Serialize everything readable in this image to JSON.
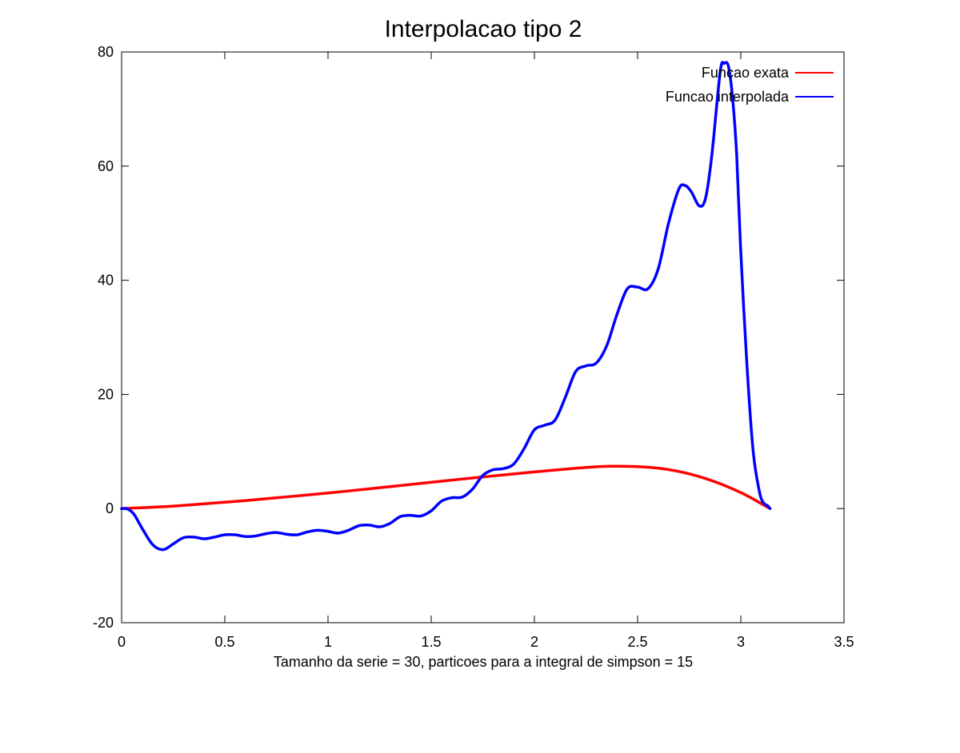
{
  "chart_data": {
    "type": "line",
    "title": "Interpolacao tipo 2",
    "xlabel": "Tamanho da serie = 30, particoes para a integral de simpson = 15",
    "ylabel": "",
    "xlim": [
      0,
      3.5
    ],
    "ylim": [
      -20,
      80
    ],
    "xticks": [
      0,
      0.5,
      1,
      1.5,
      2,
      2.5,
      3,
      3.5
    ],
    "xtick_labels": [
      "0",
      "0.5",
      "1",
      "1.5",
      "2",
      "2.5",
      "3",
      "3.5"
    ],
    "yticks": [
      -20,
      0,
      20,
      40,
      60,
      80
    ],
    "ytick_labels": [
      "-20",
      "0",
      "20",
      "40",
      "60",
      "80"
    ],
    "grid": false,
    "legend_position": "top-right",
    "series": [
      {
        "name": "Funcao exata",
        "color": "#ff0000",
        "x": [
          0,
          0.2,
          0.4,
          0.6,
          0.8,
          1.0,
          1.2,
          1.4,
          1.6,
          1.8,
          2.0,
          2.2,
          2.35,
          2.5,
          2.6,
          2.7,
          2.8,
          2.9,
          3.0,
          3.05,
          3.1,
          3.1416
        ],
        "y": [
          0,
          0.32,
          0.83,
          1.4,
          2.05,
          2.72,
          3.46,
          4.22,
          4.98,
          5.72,
          6.42,
          7.06,
          7.4,
          7.35,
          7.08,
          6.5,
          5.58,
          4.35,
          2.8,
          1.87,
          0.84,
          0
        ]
      },
      {
        "name": "Funcao interpolada",
        "color": "#0000ff",
        "x": [
          0,
          0.03,
          0.06,
          0.1,
          0.15,
          0.2,
          0.25,
          0.3,
          0.35,
          0.4,
          0.45,
          0.5,
          0.55,
          0.6,
          0.65,
          0.7,
          0.75,
          0.8,
          0.85,
          0.9,
          0.95,
          1.0,
          1.05,
          1.1,
          1.15,
          1.2,
          1.25,
          1.3,
          1.35,
          1.4,
          1.45,
          1.5,
          1.55,
          1.6,
          1.65,
          1.7,
          1.75,
          1.8,
          1.85,
          1.9,
          1.95,
          2.0,
          2.05,
          2.1,
          2.15,
          2.2,
          2.25,
          2.3,
          2.35,
          2.4,
          2.45,
          2.5,
          2.55,
          2.6,
          2.65,
          2.7,
          2.73,
          2.76,
          2.8,
          2.83,
          2.86,
          2.9,
          2.92,
          2.94,
          2.96,
          2.98,
          3.0,
          3.03,
          3.06,
          3.09,
          3.11,
          3.13,
          3.1416
        ],
        "y": [
          0,
          -0.1,
          -1.0,
          -3.5,
          -6.3,
          -7.2,
          -6.2,
          -5.1,
          -5.0,
          -5.3,
          -5.0,
          -4.6,
          -4.6,
          -4.9,
          -4.8,
          -4.4,
          -4.2,
          -4.5,
          -4.6,
          -4.1,
          -3.8,
          -4.0,
          -4.3,
          -3.8,
          -3.0,
          -2.9,
          -3.2,
          -2.6,
          -1.4,
          -1.2,
          -1.3,
          -0.4,
          1.3,
          1.9,
          2.0,
          3.4,
          5.8,
          6.8,
          7.0,
          7.8,
          10.5,
          13.8,
          14.6,
          15.5,
          19.5,
          24.0,
          25.0,
          25.5,
          28.5,
          34.0,
          38.5,
          38.8,
          38.5,
          42.0,
          50.0,
          56.0,
          56.6,
          55.5,
          53.0,
          54.5,
          62.0,
          76.5,
          78.0,
          77.5,
          72.0,
          62.0,
          45.0,
          25.0,
          10.0,
          3.0,
          1.0,
          0.5,
          0
        ]
      }
    ]
  }
}
